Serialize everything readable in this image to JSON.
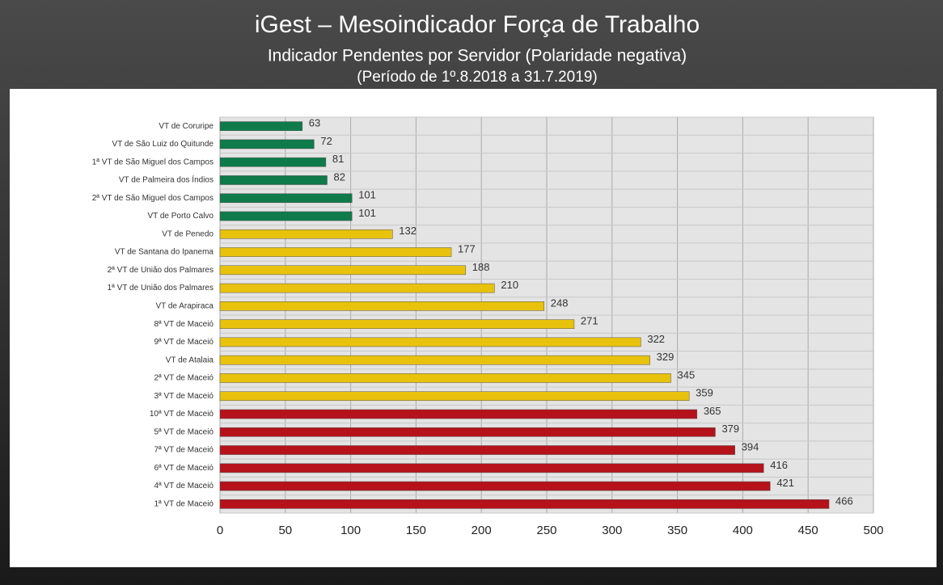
{
  "chart_data": {
    "type": "barh",
    "title": "iGest – Mesoindicador Força de Trabalho",
    "subtitle": "Indicador Pendentes por Servidor (Polaridade negativa)",
    "period": "(Período de 1º.8.2018  a  31.7.2019)",
    "categories": [
      "VT de Coruripe",
      "VT de São Luiz do Quitunde",
      "1ª VT de São Miguel dos Campos",
      "VT de Palmeira dos Índios",
      "2ª VT de São Miguel dos Campos",
      "VT de Porto Calvo",
      "VT de Penedo",
      "VT de Santana do Ipanema",
      "2ª VT de União dos Palmares",
      "1ª VT de União dos Palmares",
      "VT de Arapiraca",
      "8ª VT de Maceió",
      "9ª VT de Maceió",
      "VT de Atalaia",
      "2ª VT de Maceió",
      "3ª VT de Maceió",
      "10ª VT de Maceió",
      "5ª VT de Maceió",
      "7ª VT de Maceió",
      "6ª VT de Maceió",
      "4ª VT de Maceió",
      "1ª VT de Maceió"
    ],
    "values": [
      63,
      72,
      81,
      82,
      101,
      101,
      132,
      177,
      188,
      210,
      248,
      271,
      322,
      329,
      345,
      359,
      365,
      379,
      394,
      416,
      421,
      466
    ],
    "colors": [
      "#0f7a4a",
      "#0f7a4a",
      "#0f7a4a",
      "#0f7a4a",
      "#0f7a4a",
      "#0f7a4a",
      "#e8c20c",
      "#e8c20c",
      "#e8c20c",
      "#e8c20c",
      "#e8c20c",
      "#e8c20c",
      "#e8c20c",
      "#e8c20c",
      "#e8c20c",
      "#e8c20c",
      "#b5121b",
      "#b5121b",
      "#b5121b",
      "#b5121b",
      "#b5121b",
      "#b5121b"
    ],
    "xlim": [
      0,
      500
    ],
    "xticks": [
      0,
      50,
      100,
      150,
      200,
      250,
      300,
      350,
      400,
      450,
      500
    ],
    "grid": true
  }
}
